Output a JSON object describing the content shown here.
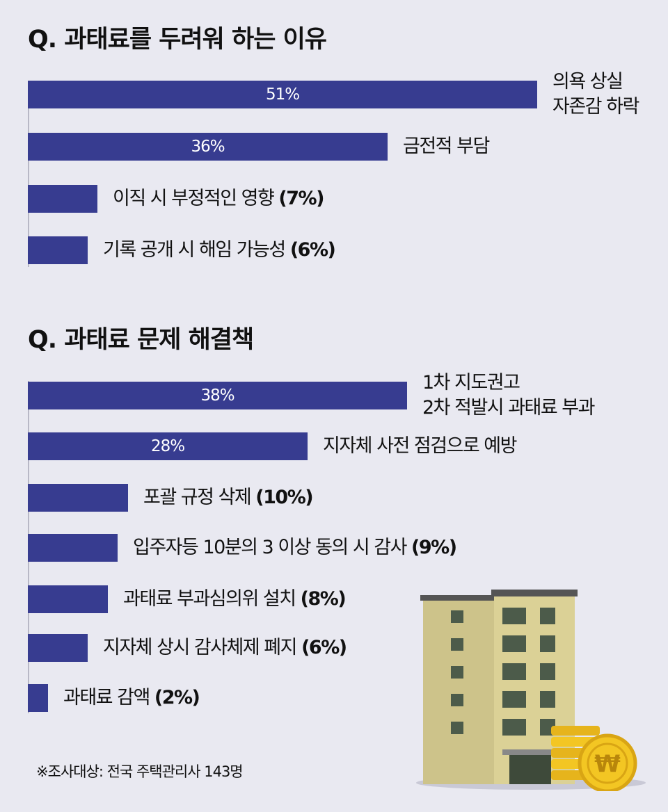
{
  "chart_data": [
    {
      "type": "bar",
      "orientation": "horizontal",
      "title": "Q. 과태료를 두려워 하는 이유",
      "categories": [
        "의욕 상실\n자존감 하락",
        "금전적 부담",
        "이직 시 부정적인 영향",
        "기록 공개 시 해임 가능성"
      ],
      "values": [
        51,
        36,
        7,
        6
      ],
      "unit": "%"
    },
    {
      "type": "bar",
      "orientation": "horizontal",
      "title": "Q. 과태료 문제 해결책",
      "categories": [
        "1차 지도권고\n2차 적발시 과태료 부과",
        "지자체 사전 점검으로 예방",
        "포괄 규정 삭제",
        "입주자등 10분의 3 이상 동의 시 감사",
        "과태료 부과심의위 설치",
        "지자체 상시 감사체제 폐지",
        "과태료 감액"
      ],
      "values": [
        38,
        28,
        10,
        9,
        8,
        6,
        2
      ],
      "unit": "%"
    }
  ],
  "footnote": "※조사대상: 전국 주택관리사 143명",
  "illustration": {
    "coin_symbol": "₩"
  },
  "colors": {
    "bar": "#373c90",
    "background": "#e9e9f1",
    "coin": "#f3c623",
    "building": "#d9cf95"
  }
}
